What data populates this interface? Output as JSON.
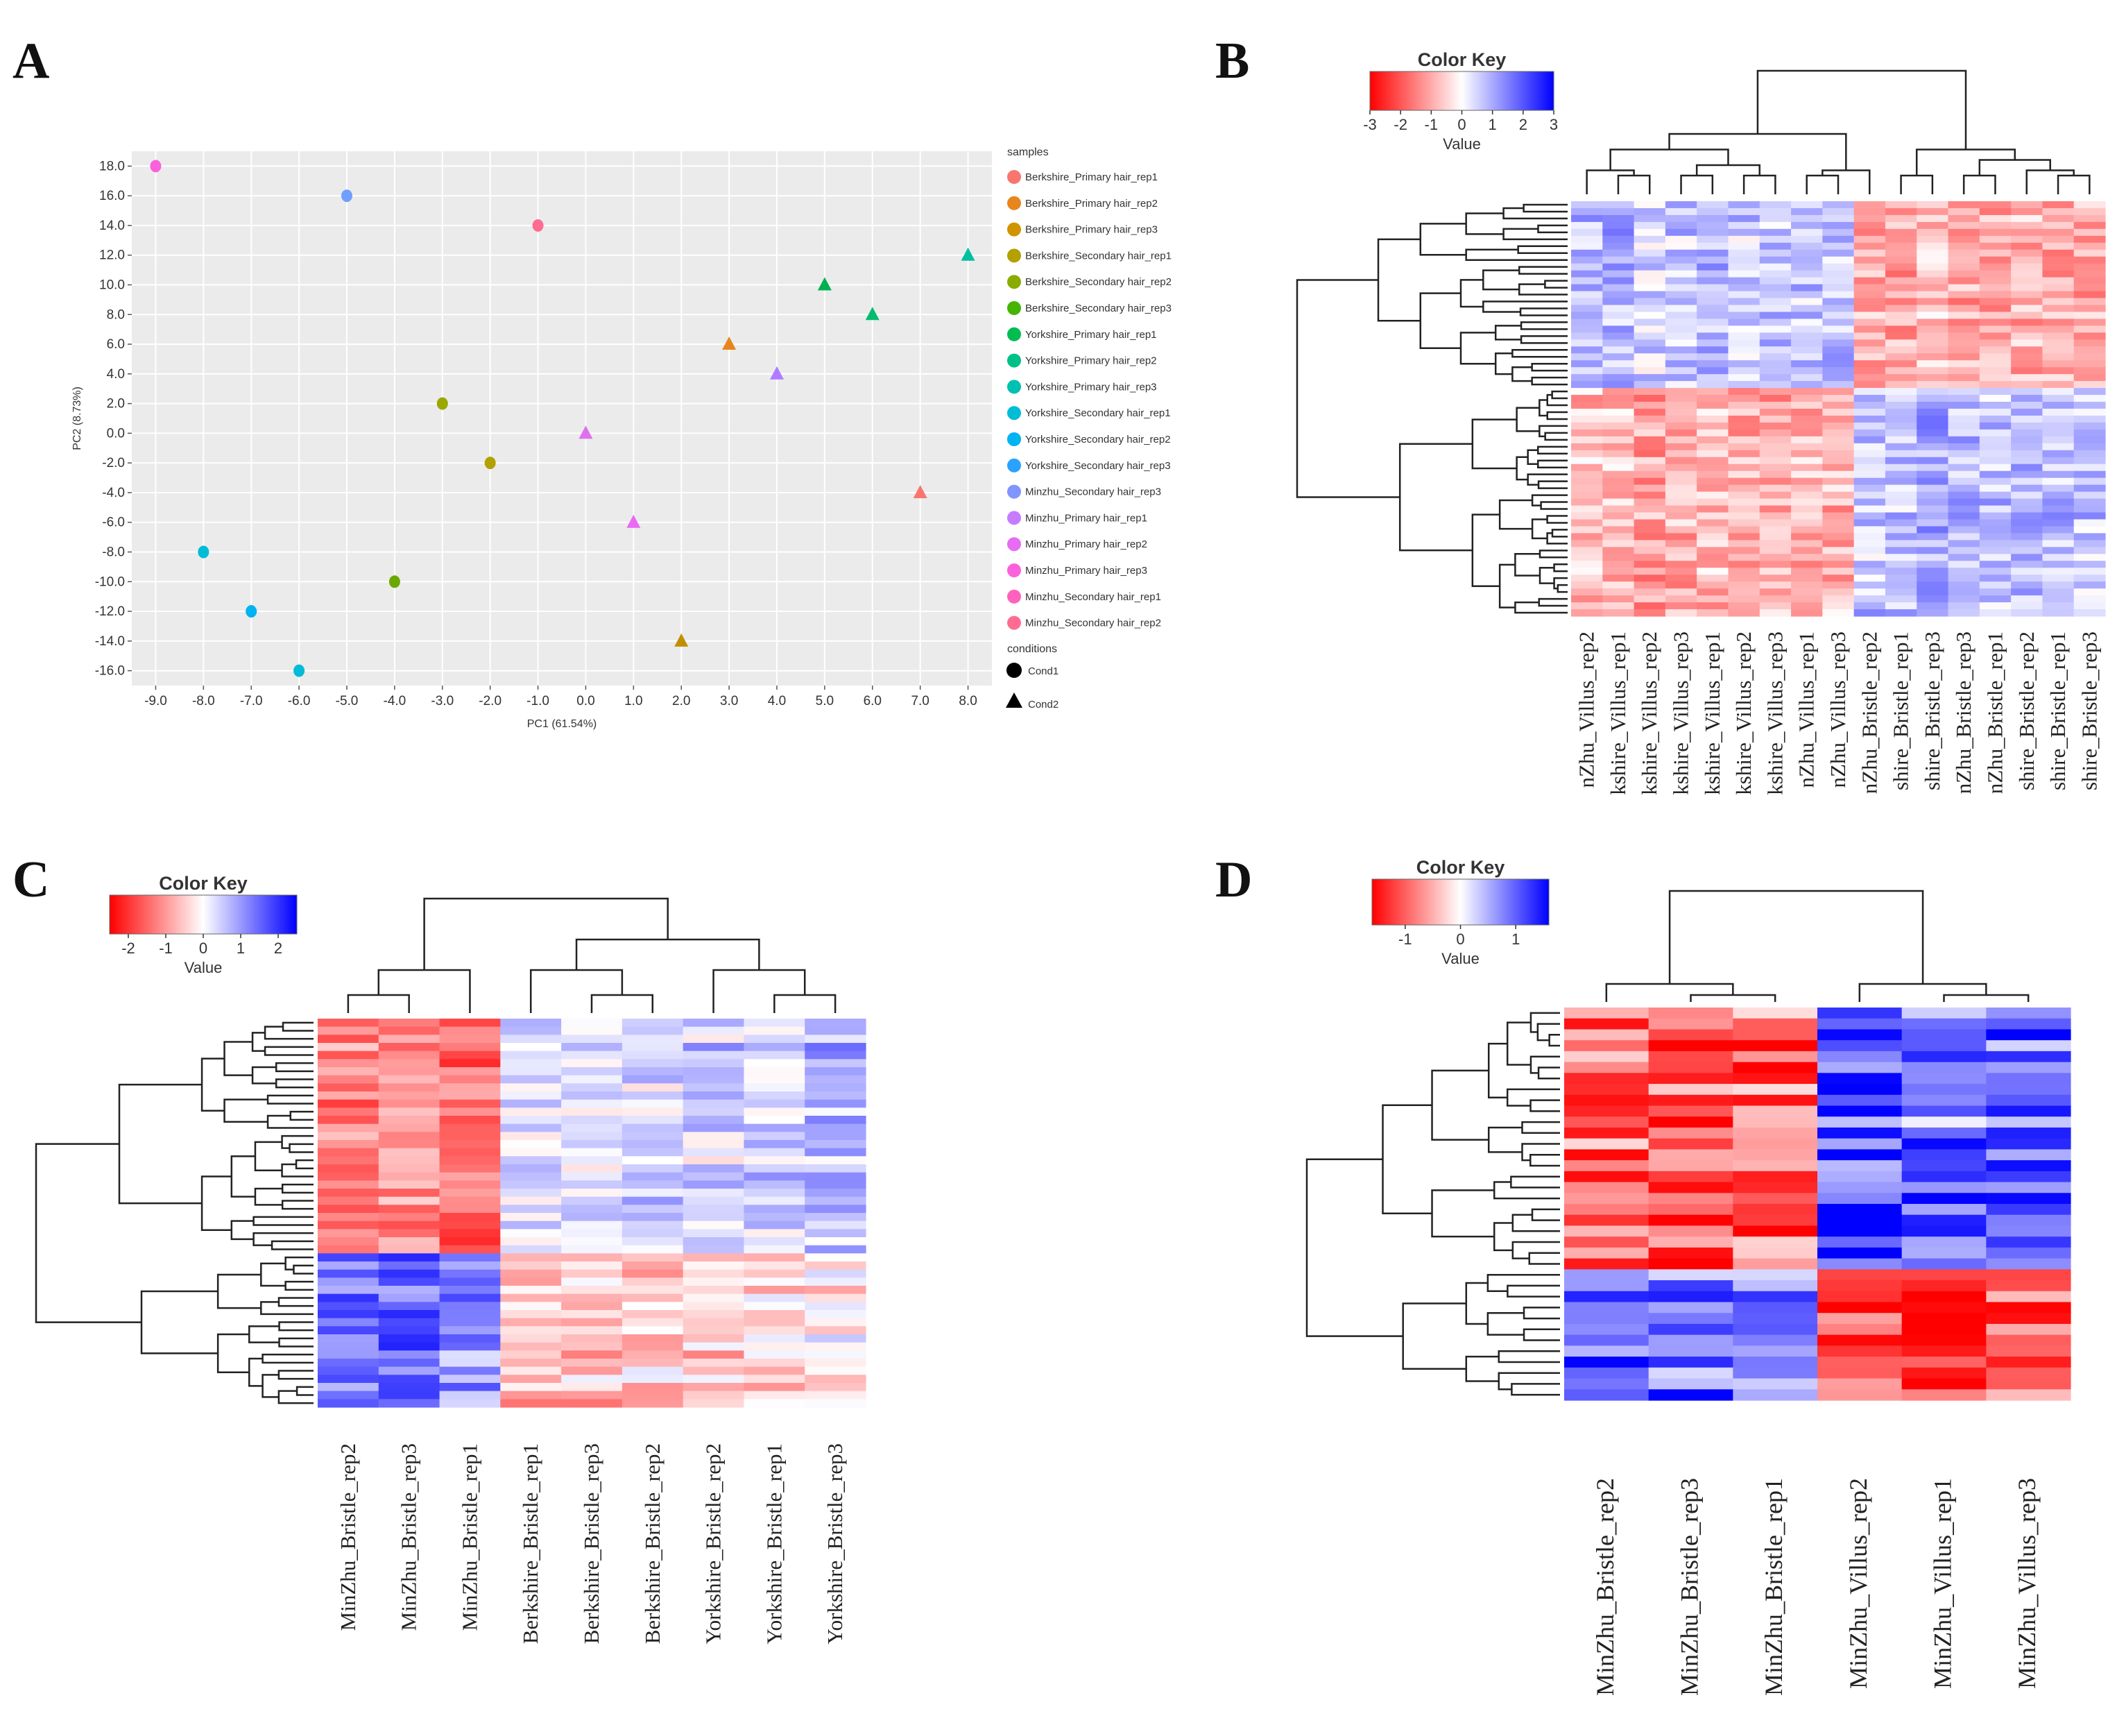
{
  "panels": {
    "A": "A",
    "B": "B",
    "C": "C",
    "D": "D"
  },
  "colors": {
    "plot_bg": "#ebebeb",
    "grid": "#ffffff",
    "low": "#ff0000",
    "mid": "#ffffff",
    "high": "#0000ff"
  },
  "chart_data": [
    {
      "id": "A",
      "type": "scatter",
      "title": "",
      "xlabel": "PC1 (61.54%)",
      "ylabel": "PC2 (8.73%)",
      "xlim": [
        -9.5,
        8.5
      ],
      "ylim": [
        -17,
        19
      ],
      "xticks": [
        -9,
        -8,
        -7,
        -6,
        -5,
        -4,
        -3,
        -2,
        -1,
        0,
        1,
        2,
        3,
        4,
        5,
        6,
        7,
        8
      ],
      "xtick_labels": [
        "-9.0",
        "-8.0",
        "-7.0",
        "-6.0",
        "-5.0",
        "-4.0",
        "-3.0",
        "-2.0",
        "-1.0",
        "0.0",
        "1.0",
        "2.0",
        "3.0",
        "4.0",
        "5.0",
        "6.0",
        "7.0",
        "8.0"
      ],
      "yticks": [
        18,
        16,
        14,
        12,
        10,
        8,
        6,
        4,
        2,
        0,
        -2,
        -4,
        -6,
        -8,
        -10,
        -12,
        -14,
        -16
      ],
      "ytick_labels": [
        "18.0",
        "16.0",
        "14.0",
        "12.0",
        "10.0",
        "8.0",
        "6.0",
        "4.0",
        "2.0",
        "0.0",
        "-2.0",
        "-4.0",
        "-6.0",
        "-8.0",
        "-10.0",
        "-12.0",
        "-14.0",
        "-16.0"
      ],
      "legend_title_samples": "samples",
      "legend_title_conditions": "conditions",
      "conditions": [
        "Cond1",
        "Cond2"
      ],
      "samples": [
        {
          "name": "Berkshire_Primary hair_rep1",
          "color": "#f8766d"
        },
        {
          "name": "Berkshire_Primary hair_rep2",
          "color": "#e7851e"
        },
        {
          "name": "Berkshire_Primary hair_rep3",
          "color": "#d09400"
        },
        {
          "name": "Berkshire_Secondary hair_rep1",
          "color": "#b2a100"
        },
        {
          "name": "Berkshire_Secondary hair_rep2",
          "color": "#8aab00"
        },
        {
          "name": "Berkshire_Secondary hair_rep3",
          "color": "#45b500"
        },
        {
          "name": "Yorkshire_Primary hair_rep1",
          "color": "#00bc51"
        },
        {
          "name": "Yorkshire_Primary hair_rep2",
          "color": "#00c087"
        },
        {
          "name": "Yorkshire_Primary hair_rep3",
          "color": "#00c0b2"
        },
        {
          "name": "Yorkshire_Secondary hair_rep1",
          "color": "#00bcd6"
        },
        {
          "name": "Yorkshire_Secondary hair_rep2",
          "color": "#00b3f2"
        },
        {
          "name": "Yorkshire_Secondary hair_rep3",
          "color": "#29a3ff"
        },
        {
          "name": "Minzhu_Secondary hair_rep3",
          "color": "#7f96ff"
        },
        {
          "name": "Minzhu_Primary hair_rep1",
          "color": "#c77cff"
        },
        {
          "name": "Minzhu_Primary hair_rep2",
          "color": "#e76bf3"
        },
        {
          "name": "Minzhu_Primary hair_rep3",
          "color": "#fa62db"
        },
        {
          "name": "Minzhu_Secondary hair_rep1",
          "color": "#ff62bc"
        },
        {
          "name": "Minzhu_Secondary hair_rep2",
          "color": "#ff6c91"
        }
      ],
      "points": [
        {
          "x": -9,
          "y": 18,
          "shape": "circle",
          "color": "#fa62db"
        },
        {
          "x": -5,
          "y": 16,
          "shape": "circle",
          "color": "#6f9fff"
        },
        {
          "x": -1,
          "y": 14,
          "shape": "circle",
          "color": "#ff6c91"
        },
        {
          "x": 8,
          "y": 12,
          "shape": "triangle",
          "color": "#00c0a0"
        },
        {
          "x": 5,
          "y": 10,
          "shape": "triangle",
          "color": "#00b050"
        },
        {
          "x": 6,
          "y": 8,
          "shape": "triangle",
          "color": "#00bc70"
        },
        {
          "x": 3,
          "y": 6,
          "shape": "triangle",
          "color": "#e7851e"
        },
        {
          "x": 4,
          "y": 4,
          "shape": "triangle",
          "color": "#b07cff"
        },
        {
          "x": -3,
          "y": 2,
          "shape": "circle",
          "color": "#9aa800"
        },
        {
          "x": 0,
          "y": 0,
          "shape": "triangle",
          "color": "#e070f0"
        },
        {
          "x": -2,
          "y": -2,
          "shape": "circle",
          "color": "#b2a100"
        },
        {
          "x": 7,
          "y": -4,
          "shape": "triangle",
          "color": "#f8766d"
        },
        {
          "x": 1,
          "y": -6,
          "shape": "triangle",
          "color": "#e76bf3"
        },
        {
          "x": -8,
          "y": -8,
          "shape": "circle",
          "color": "#00bcd6"
        },
        {
          "x": -4,
          "y": -10,
          "shape": "circle",
          "color": "#6aa800"
        },
        {
          "x": -7,
          "y": -12,
          "shape": "circle",
          "color": "#00b3f2"
        },
        {
          "x": 2,
          "y": -14,
          "shape": "triangle",
          "color": "#c09000"
        },
        {
          "x": -6,
          "y": -16,
          "shape": "circle",
          "color": "#00bcd6"
        }
      ]
    },
    {
      "id": "B",
      "type": "heatmap",
      "color_key_title": "Color Key",
      "color_key_ticks": [
        "-3",
        "-2",
        "-1",
        "0",
        "1",
        "2",
        "3"
      ],
      "color_key_range": [
        -3,
        3
      ],
      "color_key_label": "Value",
      "columns": [
        "nZhu_Villus_rep2",
        "kshire_Villus_rep1",
        "kshire_Villus_rep2",
        "kshire_Villus_rep3",
        "kshire_Villus_rep1",
        "kshire_Villus_rep2",
        "kshire_Villus_rep3",
        "nZhu_Villus_rep1",
        "nZhu_Villus_rep3",
        "nZhu_Bristle_rep2",
        "shire_Bristle_rep1",
        "shire_Bristle_rep3",
        "nZhu_Bristle_rep3",
        "nZhu_Bristle_rep1",
        "shire_Bristle_rep2",
        "shire_Bristle_rep1",
        "shire_Bristle_rep3"
      ],
      "n_rows": 60,
      "row_clusters": [
        0.45,
        0.55
      ],
      "column_groups": [
        9,
        8
      ],
      "group_pattern": [
        [
          0.7,
          -0.9
        ],
        [
          -0.9,
          0.8
        ]
      ]
    },
    {
      "id": "C",
      "type": "heatmap",
      "color_key_title": "Color Key",
      "color_key_ticks": [
        "-2",
        "-1",
        "0",
        "1",
        "2"
      ],
      "color_key_range": [
        -2.5,
        2.5
      ],
      "color_key_label": "Value",
      "columns": [
        "MinZhu_Bristle_rep2",
        "MinZhu_Bristle_rep3",
        "MinZhu_Bristle_rep1",
        "Berkshire_Bristle_rep1",
        "Berkshire_Bristle_rep3",
        "Berkshire_Bristle_rep2",
        "Yorkshire_Bristle_rep2",
        "Yorkshire_Bristle_rep1",
        "Yorkshire_Bristle_rep3"
      ],
      "n_rows": 48,
      "row_clusters": [
        0.6,
        0.4
      ],
      "column_groups": [
        3,
        3,
        3
      ],
      "group_pattern": [
        [
          -1.3,
          0.2,
          0.6
        ],
        [
          1.2,
          -0.6,
          -0.4
        ]
      ]
    },
    {
      "id": "D",
      "type": "heatmap",
      "color_key_title": "Color Key",
      "color_key_ticks": [
        "-1",
        "0",
        "1"
      ],
      "color_key_range": [
        -1.6,
        1.6
      ],
      "color_key_label": "Value",
      "columns": [
        "MinZhu_Bristle_rep2",
        "MinZhu_Bristle_rep3",
        "MinZhu_Bristle_rep1",
        "MinZhu_Villus_rep2",
        "MinZhu_Villus_rep1",
        "MinZhu_Villus_rep3"
      ],
      "n_rows": 36,
      "row_clusters": [
        0.68,
        0.32
      ],
      "column_groups": [
        3,
        3
      ],
      "group_pattern": [
        [
          -1.0,
          1.0
        ],
        [
          1.0,
          -1.0
        ]
      ]
    }
  ]
}
